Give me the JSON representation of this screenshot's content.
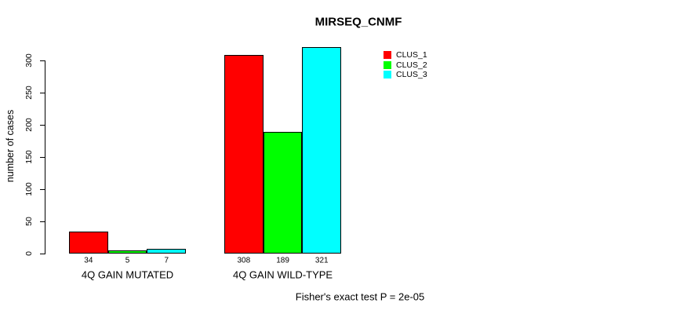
{
  "page": {
    "background": "#ffffff"
  },
  "chart_data": {
    "type": "bar",
    "title": "MIRSEQ_CNMF",
    "ylabel": "number of cases",
    "xlabel": "",
    "footer": "Fisher's exact test P = 2e-05",
    "categories": [
      "4Q GAIN MUTATED",
      "4Q GAIN WILD-TYPE"
    ],
    "series": [
      {
        "name": "CLUS_1",
        "color": "#ff0000",
        "values": [
          34,
          308
        ]
      },
      {
        "name": "CLUS_2",
        "color": "#00ff00",
        "values": [
          5,
          189
        ]
      },
      {
        "name": "CLUS_3",
        "color": "#00ffff",
        "values": [
          7,
          321
        ]
      }
    ],
    "yticks": [
      0,
      50,
      100,
      150,
      200,
      250,
      300
    ],
    "ylim": [
      0,
      330
    ],
    "grid": false,
    "legend_position": "top-right",
    "bar_border_color": "#000000",
    "bar_value_labels_shown": true
  }
}
